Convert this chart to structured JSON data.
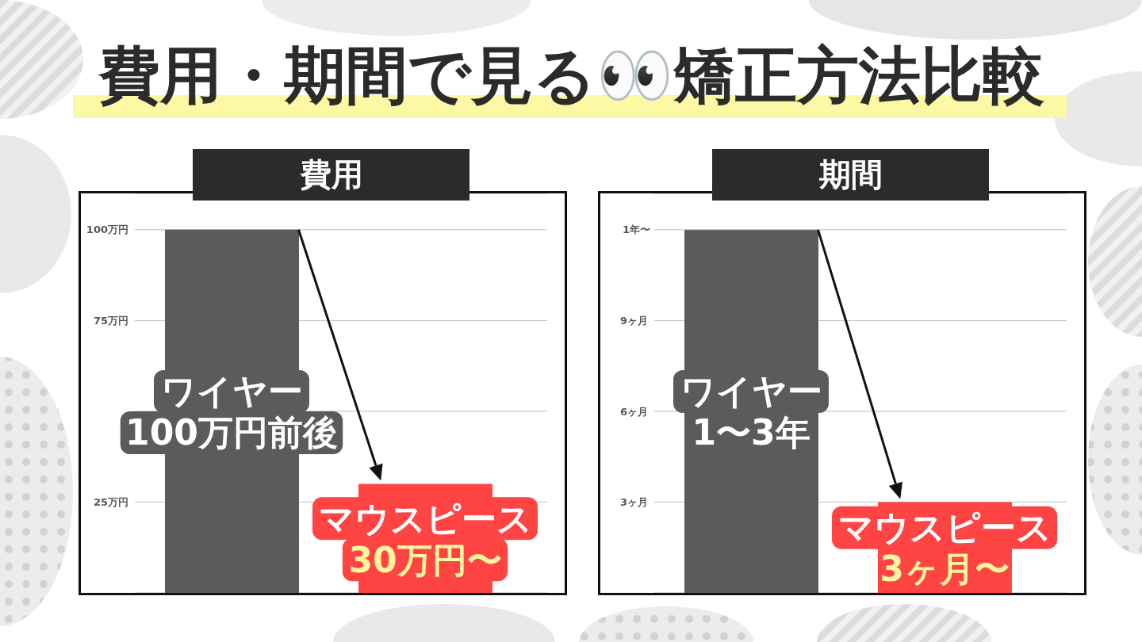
{
  "chart_data": [
    {
      "type": "other",
      "title": "費用・期間で見る👀矯正方法比較"
    },
    {
      "type": "bar",
      "title": "費用",
      "categories": [
        "ワイヤー",
        "マウスピース"
      ],
      "values": [
        100,
        30
      ],
      "colors": [
        "#5b5b5b",
        "#ff4444"
      ],
      "value_labels": [
        "100万円前後",
        "30万円〜"
      ],
      "ylim": [
        0,
        110
      ],
      "yticks": [
        {
          "value": 25,
          "label": "25万円"
        },
        {
          "value": 50,
          "label": null
        },
        {
          "value": 75,
          "label": "75万円"
        },
        {
          "value": 100,
          "label": "100万円"
        }
      ],
      "grid": "y"
    },
    {
      "type": "bar",
      "title": "期間",
      "categories": [
        "ワイヤー",
        "マウスピース"
      ],
      "values": [
        12,
        3
      ],
      "colors": [
        "#5b5b5b",
        "#ff4444"
      ],
      "value_labels": [
        null,
        "3ヶ月〜"
      ],
      "annotations": [
        "1〜3年"
      ],
      "ylim": [
        0,
        13.2
      ],
      "yticks": [
        {
          "value": 3,
          "label": "3ヶ月"
        },
        {
          "value": 6,
          "label": "6ヶ月"
        },
        {
          "value": 9,
          "label": "9ヶ月"
        }
      ],
      "ref_lines": [
        {
          "axis": "y",
          "value": 12,
          "label": "1年〜"
        }
      ],
      "grid": "y"
    }
  ]
}
